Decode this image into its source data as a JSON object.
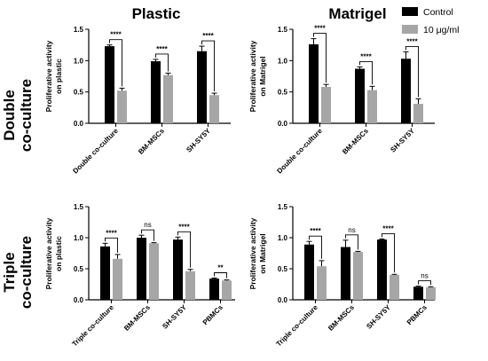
{
  "figure": {
    "col_titles": [
      "Plastic",
      "Matrigel"
    ],
    "row_titles": [
      {
        "line1": "Double",
        "line2": "co-culture"
      },
      {
        "line1": "Triple",
        "line2": "co-culture"
      }
    ],
    "colors": {
      "control": "#000000",
      "treated": "#a6a6a6",
      "axis": "#000000"
    }
  },
  "legend": {
    "position": "top-right",
    "entries": [
      {
        "label": "Control",
        "color": "#000000"
      },
      {
        "label": "10 μg/ml",
        "color": "#a6a6a6"
      }
    ]
  },
  "chart_data": [
    {
      "type": "bar",
      "title": "Plastic",
      "row": "Double co-culture",
      "ylabel_lines": [
        "Proliferative activity",
        "on plastic"
      ],
      "ylim": [
        0,
        1.5
      ],
      "yticks": [
        "0.0",
        "0.5",
        "1.0",
        "1.5"
      ],
      "categories": [
        "Double co-culture",
        "BM-MSCs",
        "SH-SY5Y"
      ],
      "series": [
        {
          "name": "Control",
          "values": [
            1.23,
            0.99,
            1.15
          ],
          "errors": [
            0.02,
            0.03,
            0.08
          ]
        },
        {
          "name": "10 μg/ml",
          "values": [
            0.52,
            0.77,
            0.45
          ],
          "errors": [
            0.04,
            0.03,
            0.03
          ]
        }
      ],
      "significance": [
        "****",
        "****",
        "****"
      ]
    },
    {
      "type": "bar",
      "title": "Matrigel",
      "row": "Double co-culture",
      "ylabel_lines": [
        "Proliferative activity",
        "on Matrigel"
      ],
      "ylim": [
        0,
        1.5
      ],
      "yticks": [
        "0.0",
        "0.5",
        "1.0",
        "1.5"
      ],
      "categories": [
        "Double co-culture",
        "BM-MSCs",
        "SH-SY5Y"
      ],
      "series": [
        {
          "name": "Control",
          "values": [
            1.26,
            0.87,
            1.03
          ],
          "errors": [
            0.09,
            0.03,
            0.11
          ]
        },
        {
          "name": "10 μg/ml",
          "values": [
            0.58,
            0.53,
            0.31
          ],
          "errors": [
            0.04,
            0.06,
            0.08
          ]
        }
      ],
      "significance": [
        "****",
        "****",
        "****"
      ]
    },
    {
      "type": "bar",
      "title": "",
      "row": "Triple co-culture",
      "ylabel_lines": [
        "Proliferative activity",
        "on plastic"
      ],
      "ylim": [
        0,
        1.5
      ],
      "yticks": [
        "0.0",
        "0.5",
        "1.0",
        "1.5"
      ],
      "categories": [
        "Triple co-culture",
        "BM-MSCs",
        "SH-SY5Y",
        "PBMCs"
      ],
      "series": [
        {
          "name": "Control",
          "values": [
            0.86,
            1.0,
            0.97,
            0.34
          ],
          "errors": [
            0.05,
            0.04,
            0.04,
            0.01
          ]
        },
        {
          "name": "10 μg/ml",
          "values": [
            0.66,
            0.91,
            0.46,
            0.31
          ],
          "errors": [
            0.07,
            0.01,
            0.03,
            0.01
          ]
        }
      ],
      "significance": [
        "****",
        "ns",
        "****",
        "**"
      ]
    },
    {
      "type": "bar",
      "title": "",
      "row": "Triple co-culture",
      "ylabel_lines": [
        "Proliferative activity",
        "on Matrigel"
      ],
      "ylim": [
        0,
        1.5
      ],
      "yticks": [
        "0.0",
        "0.5",
        "1.0",
        "1.5"
      ],
      "categories": [
        "Triple co-culture",
        "BM-MSCs",
        "SH-SY5Y",
        "PBMCs"
      ],
      "series": [
        {
          "name": "Control",
          "values": [
            0.89,
            0.85,
            0.97,
            0.21
          ],
          "errors": [
            0.05,
            0.11,
            0.01,
            0.01
          ]
        },
        {
          "name": "10 μg/ml",
          "values": [
            0.54,
            0.77,
            0.4,
            0.2
          ],
          "errors": [
            0.09,
            0.01,
            0.01,
            0.01
          ]
        }
      ],
      "significance": [
        "****",
        "ns",
        "****",
        "ns"
      ]
    }
  ]
}
